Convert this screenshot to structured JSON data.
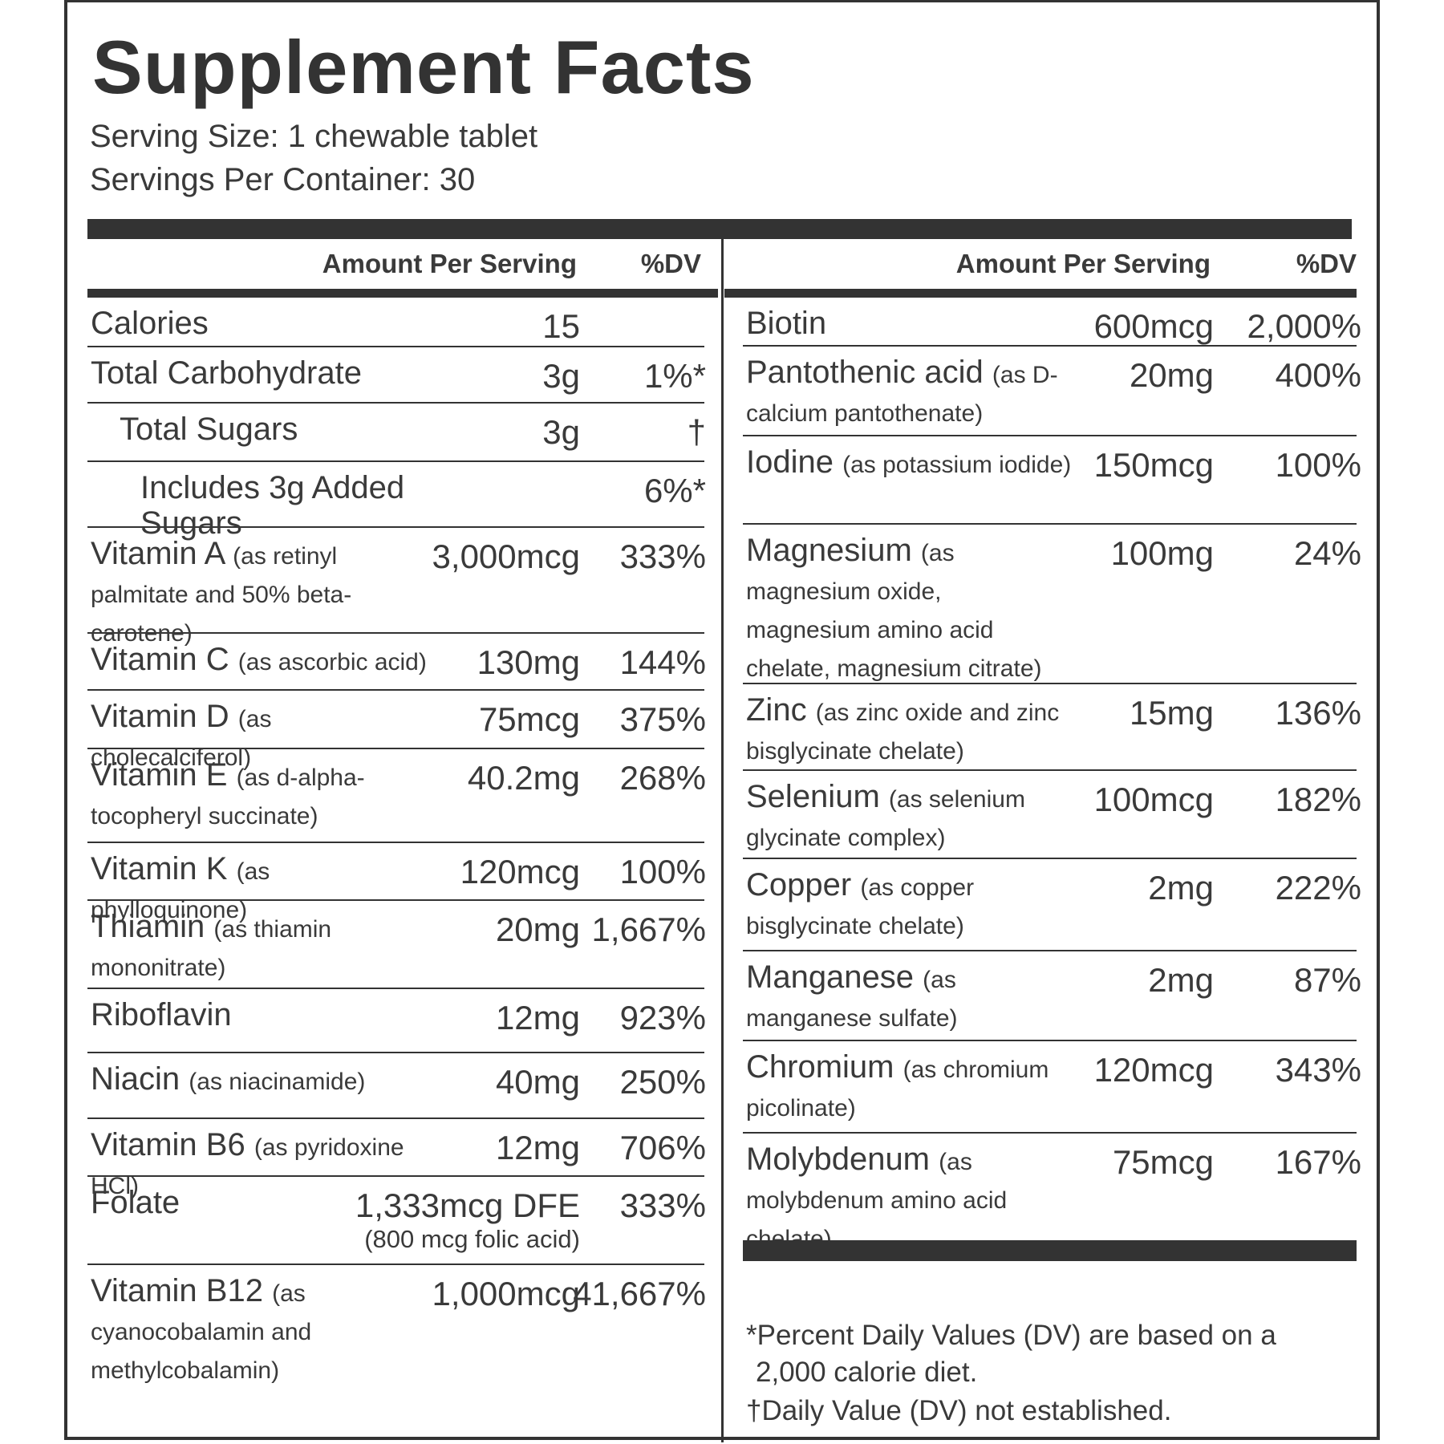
{
  "title": "Supplement Facts",
  "serving_size": "Serving Size: 1 chewable tablet",
  "servings_per_container": "Servings Per Container: 30",
  "columns": [
    {
      "header": {
        "amount": "Amount Per Serving",
        "dv": "%DV"
      },
      "rows": [
        {
          "name": "Calories",
          "amount": "15"
        },
        {
          "name": "Total Carbohydrate",
          "amount": "3g",
          "dv": "1%*"
        },
        {
          "name": "Total Sugars",
          "amount": "3g",
          "dv": "†"
        },
        {
          "name": "Includes 3g Added Sugars",
          "dv": "6%*"
        },
        {
          "name": "Vitamin A",
          "source": "(as retinyl palmitate and 50% beta-carotene)",
          "amount": "3,000mcg",
          "dv": "333%"
        },
        {
          "name": "Vitamin C",
          "source": "(as ascorbic acid)",
          "amount": "130mg",
          "dv": "144%"
        },
        {
          "name": "Vitamin D",
          "source": "(as cholecalciferol)",
          "amount": "75mcg",
          "dv": "375%"
        },
        {
          "name": "Vitamin E",
          "source": "(as d-alpha-tocopheryl succinate)",
          "amount": "40.2mg",
          "dv": "268%"
        },
        {
          "name": "Vitamin K",
          "source": "(as phylloquinone)",
          "amount": "120mcg",
          "dv": "100%"
        },
        {
          "name": "Thiamin",
          "source": "(as thiamin mononitrate)",
          "amount": "20mg",
          "dv": "1,667%"
        },
        {
          "name": "Riboflavin",
          "amount": "12mg",
          "dv": "923%"
        },
        {
          "name": "Niacin",
          "source": "(as niacinamide)",
          "amount": "40mg",
          "dv": "250%"
        },
        {
          "name": "Vitamin B6",
          "source": "(as pyridoxine HCl)",
          "amount": "12mg",
          "dv": "706%"
        },
        {
          "name": "Folate",
          "amount": "1,333mcg DFE",
          "amount_note": "(800 mcg folic acid)",
          "dv": "333%"
        },
        {
          "name": "Vitamin B12",
          "source": "(as cyanocobalamin and methylcobalamin)",
          "amount": "1,000mcg",
          "dv": "41,667%"
        }
      ]
    },
    {
      "header": {
        "amount": "Amount Per Serving",
        "dv": "%DV"
      },
      "rows": [
        {
          "name": "Biotin",
          "amount": "600mcg",
          "dv": "2,000%"
        },
        {
          "name": "Pantothenic acid",
          "source": "(as D-calcium pantothenate)",
          "amount": "20mg",
          "dv": "400%"
        },
        {
          "name": "Iodine",
          "source": "(as potassium iodide)",
          "amount": "150mcg",
          "dv": "100%"
        },
        {
          "name": "Magnesium",
          "source": "(as magnesium oxide, magnesium amino acid chelate, magnesium citrate)",
          "amount": "100mg",
          "dv": "24%"
        },
        {
          "name": "Zinc",
          "source": "(as zinc oxide and zinc bisglycinate chelate)",
          "amount": "15mg",
          "dv": "136%"
        },
        {
          "name": "Selenium",
          "source": "(as selenium glycinate complex)",
          "amount": "100mcg",
          "dv": "182%"
        },
        {
          "name": "Copper",
          "source": "(as copper bisglycinate chelate)",
          "amount": "2mg",
          "dv": "222%"
        },
        {
          "name": "Manganese",
          "source": "(as manganese sulfate)",
          "amount": "2mg",
          "dv": "87%"
        },
        {
          "name": "Chromium",
          "source": "(as chromium picolinate)",
          "amount": "120mcg",
          "dv": "343%"
        },
        {
          "name": "Molybdenum",
          "source": "(as molybdenum amino acid chelate)",
          "amount": "75mcg",
          "dv": "167%"
        }
      ]
    }
  ],
  "footnotes": [
    "*Percent Daily Values (DV) are based on a 2,000 calorie diet.",
    "†Daily Value (DV) not established."
  ]
}
